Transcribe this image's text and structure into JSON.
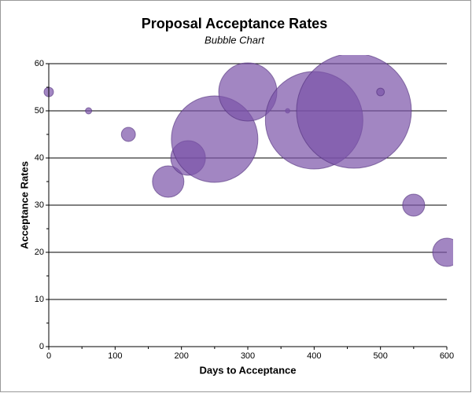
{
  "chart_data": {
    "type": "bubble",
    "title": "Proposal Acceptance Rates",
    "subtitle": "Bubble Chart",
    "x_label": "Days to Acceptance",
    "y_label": "Acceptance Rates",
    "x": [
      0,
      60,
      120,
      180,
      210,
      250,
      300,
      360,
      400,
      460,
      500,
      550,
      600
    ],
    "values": [
      54,
      50,
      45,
      35,
      40,
      44,
      54,
      50,
      48,
      50,
      54,
      30,
      20
    ],
    "sizes": [
      9,
      4,
      20,
      100,
      121,
      756,
      342,
      2,
      961,
      1332,
      6,
      49,
      81
    ],
    "color": "#7a52a8",
    "xlim": [
      0,
      600
    ],
    "xticks": [
      0,
      100,
      200,
      300,
      400,
      500,
      600
    ],
    "ylim": [
      0,
      60
    ],
    "yticks": [
      0,
      10,
      20,
      30,
      40,
      50,
      60
    ],
    "grid": true
  }
}
